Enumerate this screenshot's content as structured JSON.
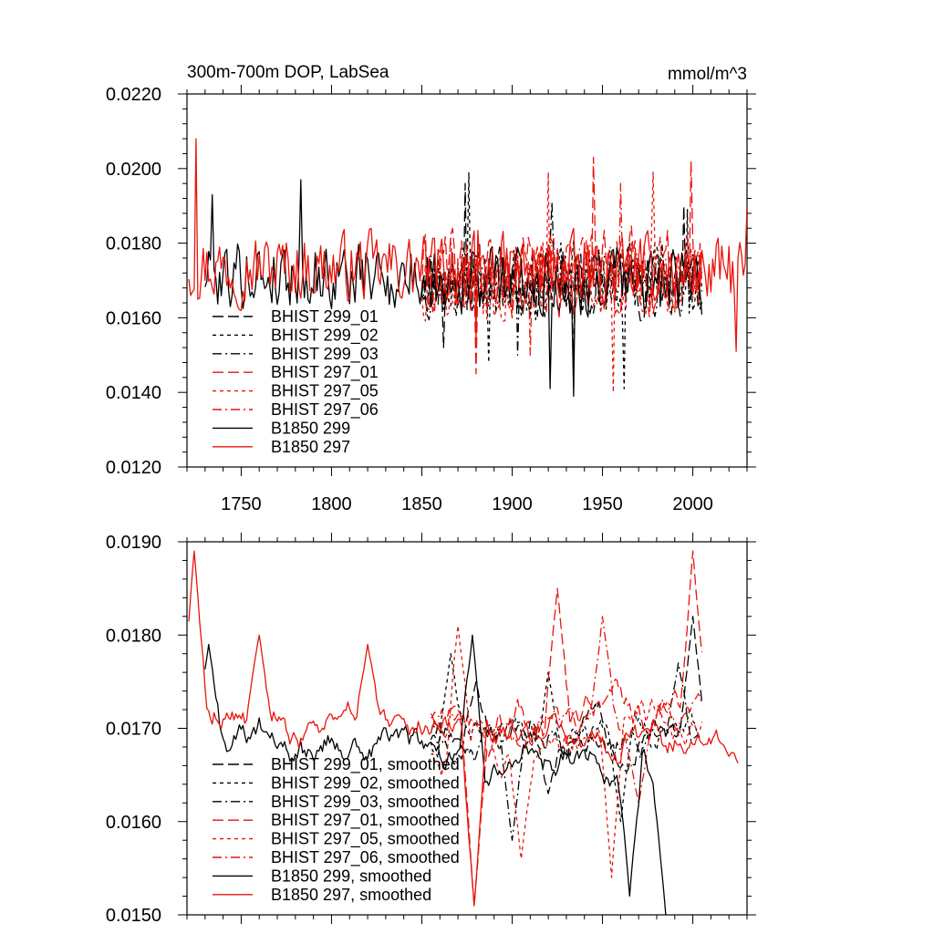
{
  "chart_data": [
    {
      "type": "line",
      "title": "300m-700m DOP, LabSea",
      "units": "mmol/m^3",
      "xlim": [
        1720,
        2030
      ],
      "ylim": [
        0.012,
        0.022
      ],
      "xticks": [
        1750,
        1800,
        1850,
        1900,
        1950,
        2000
      ],
      "xtick_labels": [
        "1750",
        "1800",
        "1850",
        "1900",
        "1950",
        "2000"
      ],
      "yticks": [
        0.012,
        0.014,
        0.016,
        0.018,
        0.02,
        0.022
      ],
      "ytick_labels": [
        "0.0120",
        "0.0140",
        "0.0160",
        "0.0180",
        "0.0200",
        "0.0220"
      ],
      "legend_position": "bottom-left",
      "legend": [
        "BHIST 299_01",
        "BHIST 299_02",
        "BHIST 299_03",
        "BHIST 297_01",
        "BHIST 297_05",
        "BHIST 297_06",
        "B1850 299",
        "B1850 297"
      ],
      "series": [
        {
          "name": "BHIST 299_01",
          "color": "#000000",
          "dash": "long",
          "x0": 1850,
          "x1": 2005,
          "step": 1,
          "base": 0.017,
          "amp": 0.001,
          "trend": 0.0,
          "seed": 11,
          "smooth": 0,
          "mins": [
            [
              1862,
              0.0152
            ],
            [
              1934,
              0.0146
            ]
          ],
          "maxs": [
            [
              1874,
              0.0196
            ],
            [
              1995,
              0.019
            ]
          ]
        },
        {
          "name": "BHIST 299_02",
          "color": "#000000",
          "dash": "short",
          "x0": 1850,
          "x1": 2005,
          "step": 1,
          "base": 0.017,
          "amp": 0.0011,
          "trend": 0.0,
          "seed": 23,
          "smooth": 0,
          "mins": [
            [
              1887,
              0.0148
            ],
            [
              1962,
              0.0141
            ]
          ],
          "maxs": [
            [
              1876,
              0.0199
            ],
            [
              1997,
              0.0189
            ]
          ]
        },
        {
          "name": "BHIST 299_03",
          "color": "#000000",
          "dash": "dashdot",
          "x0": 1850,
          "x1": 2005,
          "step": 1,
          "base": 0.017,
          "amp": 0.001,
          "trend": 0.0,
          "seed": 37,
          "smooth": 0,
          "mins": [
            [
              1903,
              0.015
            ]
          ],
          "maxs": [
            [
              1922,
              0.0191
            ]
          ]
        },
        {
          "name": "BHIST 297_01",
          "color": "#e8140c",
          "dash": "long",
          "x0": 1850,
          "x1": 2005,
          "step": 1,
          "base": 0.0172,
          "amp": 0.0012,
          "trend": 0.0,
          "seed": 41,
          "smooth": 0,
          "mins": [
            [
              1880,
              0.0145
            ]
          ],
          "maxs": [
            [
              1945,
              0.0203
            ],
            [
              1999,
              0.0202
            ]
          ]
        },
        {
          "name": "BHIST 297_05",
          "color": "#e8140c",
          "dash": "short",
          "x0": 1850,
          "x1": 2005,
          "step": 1,
          "base": 0.017,
          "amp": 0.0012,
          "trend": 0.0,
          "seed": 53,
          "smooth": 0,
          "mins": [
            [
              1956,
              0.014
            ]
          ],
          "maxs": [
            [
              1920,
              0.0199
            ],
            [
              1978,
              0.0199
            ]
          ]
        },
        {
          "name": "BHIST 297_06",
          "color": "#e8140c",
          "dash": "dashdot",
          "x0": 1850,
          "x1": 2005,
          "step": 1,
          "base": 0.0172,
          "amp": 0.0011,
          "trend": 0.0,
          "seed": 67,
          "smooth": 0,
          "mins": [
            [
              1910,
              0.015
            ]
          ],
          "maxs": [
            [
              1960,
              0.0196
            ]
          ]
        },
        {
          "name": "B1850 299",
          "color": "#000000",
          "dash": "solid",
          "x0": 1730,
          "x1": 2005,
          "step": 1,
          "base": 0.0172,
          "amp": 0.001,
          "trend": -0.0003,
          "seed": 79,
          "smooth": 0,
          "mins": [
            [
              1934,
              0.0139
            ],
            [
              1921,
              0.0141
            ]
          ],
          "maxs": [
            [
              1783,
              0.0197
            ],
            [
              1734,
              0.0193
            ]
          ]
        },
        {
          "name": "B1850 297",
          "color": "#e8140c",
          "dash": "solid",
          "x0": 1721,
          "x1": 2030,
          "step": 1,
          "base": 0.0174,
          "amp": 0.001,
          "trend": -0.0002,
          "seed": 97,
          "smooth": 0,
          "mins": [
            [
              2024,
              0.0151
            ],
            [
              1880,
              0.0154
            ]
          ],
          "maxs": [
            [
              1725,
              0.0208
            ],
            [
              2030,
              0.019
            ]
          ]
        }
      ]
    },
    {
      "type": "line",
      "title": "",
      "units": "",
      "xlim": [
        1720,
        2030
      ],
      "ylim": [
        0.015,
        0.019
      ],
      "xticks": [
        1750,
        1800,
        1850,
        1900,
        1950,
        2000
      ],
      "xtick_labels": [],
      "yticks": [
        0.015,
        0.016,
        0.017,
        0.018,
        0.019
      ],
      "ytick_labels": [
        "0.0150",
        "0.0160",
        "0.0170",
        "0.0180",
        "0.0190"
      ],
      "legend_position": "bottom-left",
      "legend": [
        "BHIST 299_01, smoothed",
        "BHIST 299_02, smoothed",
        "BHIST 299_03, smoothed",
        "BHIST 297_01, smoothed",
        "BHIST 297_05, smoothed",
        "BHIST 297_06, smoothed",
        "B1850 299, smoothed",
        "B1850 297, smoothed"
      ],
      "series": [
        {
          "name": "BHIST 299_01, smoothed",
          "color": "#000000",
          "dash": "long",
          "x0": 1855,
          "x1": 2005,
          "step": 1,
          "base": 0.017,
          "amp": 0.0004,
          "trend": 0.0,
          "seed": 111,
          "smooth": 1,
          "mins": [
            [
              1920,
              0.0163
            ]
          ],
          "maxs": [
            [
              2000,
              0.0182
            ],
            [
              1880,
              0.0175
            ]
          ]
        },
        {
          "name": "BHIST 299_02, smoothed",
          "color": "#000000",
          "dash": "short",
          "x0": 1855,
          "x1": 2005,
          "step": 1,
          "base": 0.0169,
          "amp": 0.0004,
          "trend": 0.0,
          "seed": 123,
          "smooth": 1,
          "mins": [
            [
              1960,
              0.016
            ]
          ],
          "maxs": [
            [
              1866,
              0.0178
            ],
            [
              1920,
              0.0176
            ]
          ]
        },
        {
          "name": "BHIST 299_03, smoothed",
          "color": "#000000",
          "dash": "dashdot",
          "x0": 1855,
          "x1": 2005,
          "step": 1,
          "base": 0.0169,
          "amp": 0.0004,
          "trend": 0.0,
          "seed": 137,
          "smooth": 1,
          "mins": [
            [
              1900,
              0.0158
            ]
          ],
          "maxs": [
            [
              1992,
              0.0177
            ]
          ]
        },
        {
          "name": "BHIST 297_01, smoothed",
          "color": "#e8140c",
          "dash": "long",
          "x0": 1855,
          "x1": 2005,
          "step": 1,
          "base": 0.0172,
          "amp": 0.0005,
          "trend": 0.0,
          "seed": 141,
          "smooth": 1,
          "mins": [
            [
              1879,
              0.0151
            ]
          ],
          "maxs": [
            [
              1925,
              0.0185
            ],
            [
              2000,
              0.0189
            ]
          ]
        },
        {
          "name": "BHIST 297_05, smoothed",
          "color": "#e8140c",
          "dash": "short",
          "x0": 1855,
          "x1": 2005,
          "step": 1,
          "base": 0.0168,
          "amp": 0.0005,
          "trend": 0.0,
          "seed": 153,
          "smooth": 1,
          "mins": [
            [
              1955,
              0.0154
            ],
            [
              1905,
              0.0156
            ]
          ],
          "maxs": [
            [
              1870,
              0.0181
            ]
          ]
        },
        {
          "name": "BHIST 297_06, smoothed",
          "color": "#e8140c",
          "dash": "dashdot",
          "x0": 1855,
          "x1": 2005,
          "step": 1,
          "base": 0.0172,
          "amp": 0.0004,
          "trend": 0.0,
          "seed": 167,
          "smooth": 1,
          "mins": [
            [
              1970,
              0.0162
            ]
          ],
          "maxs": [
            [
              1950,
              0.0182
            ]
          ]
        },
        {
          "name": "B1850 299, smoothed",
          "color": "#000000",
          "dash": "solid",
          "x0": 1730,
          "x1": 1985,
          "step": 1,
          "base": 0.017,
          "amp": 0.0004,
          "trend": -0.0005,
          "seed": 179,
          "smooth": 1,
          "mins": [
            [
              1985,
              0.015
            ],
            [
              1965,
              0.0152
            ]
          ],
          "maxs": [
            [
              1732,
              0.0179
            ],
            [
              1878,
              0.018
            ]
          ]
        },
        {
          "name": "B1850 297, smoothed",
          "color": "#e8140c",
          "dash": "solid",
          "x0": 1721,
          "x1": 2025,
          "step": 1,
          "base": 0.0172,
          "amp": 0.0004,
          "trend": -0.0004,
          "seed": 197,
          "smooth": 1,
          "mins": [
            [
              1879,
              0.0151
            ],
            [
              2020,
              0.0167
            ]
          ],
          "maxs": [
            [
              1724,
              0.0189
            ],
            [
              1760,
              0.018
            ],
            [
              1820,
              0.0179
            ]
          ]
        }
      ]
    }
  ]
}
